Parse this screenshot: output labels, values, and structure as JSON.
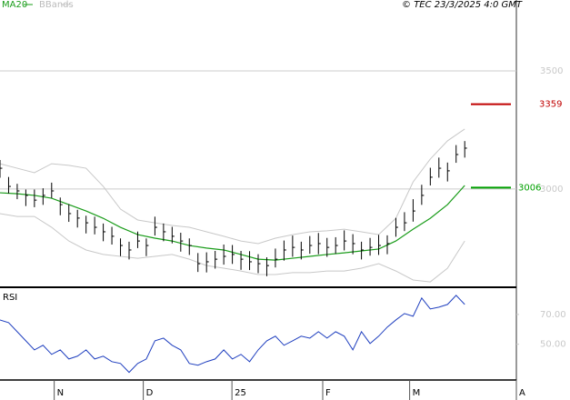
{
  "chart_data": [
    {
      "type": "ohlc",
      "credit": "© TEC 23/3/2025 4:0 GMT",
      "grid": true,
      "ylim": [
        2588,
        3800
      ],
      "yticks": [
        3000,
        3500
      ],
      "xlim": [
        0,
        120
      ],
      "ohlc": {
        "x": [
          0,
          2,
          4,
          6,
          8,
          10,
          12,
          14,
          16,
          18,
          20,
          22,
          24,
          26,
          28,
          30,
          32,
          34,
          36,
          38,
          40,
          42,
          44,
          46,
          48,
          50,
          52,
          54,
          56,
          58,
          60,
          62,
          64,
          66,
          68,
          70,
          72,
          74,
          76,
          78,
          80,
          82,
          84,
          86,
          88,
          90,
          92,
          94,
          96,
          98,
          100,
          102,
          104,
          106,
          108
        ],
        "high": [
          3123,
          3051,
          3022,
          2998,
          2998,
          3003,
          3027,
          2964,
          2936,
          2912,
          2887,
          2883,
          2854,
          2840,
          2791,
          2777,
          2820,
          2791,
          2883,
          2854,
          2840,
          2815,
          2791,
          2729,
          2732,
          2738,
          2765,
          2763,
          2738,
          2737,
          2724,
          2711,
          2748,
          2782,
          2803,
          2777,
          2801,
          2814,
          2793,
          2796,
          2825,
          2809,
          2777,
          2793,
          2806,
          2804,
          2878,
          2902,
          2957,
          3018,
          3090,
          3133,
          3112,
          3186,
          3203
        ],
        "low": [
          3048,
          2981,
          2957,
          2928,
          2923,
          2933,
          2962,
          2889,
          2861,
          2837,
          2812,
          2808,
          2779,
          2765,
          2716,
          2702,
          2750,
          2716,
          2803,
          2779,
          2770,
          2735,
          2721,
          2649,
          2647,
          2663,
          2680,
          2683,
          2658,
          2657,
          2644,
          2631,
          2668,
          2697,
          2713,
          2702,
          2726,
          2724,
          2713,
          2726,
          2740,
          2724,
          2702,
          2718,
          2721,
          2724,
          2798,
          2822,
          2862,
          2933,
          3015,
          3048,
          3032,
          3111,
          3133
        ],
        "close": [
          3088,
          3011,
          2992,
          2973,
          2953,
          2973,
          2992,
          2934,
          2896,
          2877,
          2857,
          2838,
          2819,
          2800,
          2761,
          2742,
          2780,
          2761,
          2838,
          2819,
          2800,
          2780,
          2761,
          2684,
          2692,
          2703,
          2715,
          2723,
          2703,
          2692,
          2684,
          2676,
          2703,
          2742,
          2753,
          2742,
          2761,
          2769,
          2753,
          2761,
          2780,
          2769,
          2742,
          2753,
          2761,
          2769,
          2838,
          2857,
          2907,
          2973,
          3050,
          3088,
          3077,
          3146,
          3173
        ]
      },
      "series": [
        {
          "name": "MA20",
          "color": "#1a9c1a",
          "x": [
            0,
            4,
            8,
            12,
            16,
            20,
            24,
            28,
            32,
            36,
            40,
            44,
            48,
            52,
            56,
            60,
            64,
            68,
            72,
            76,
            80,
            84,
            88,
            92,
            96,
            100,
            104,
            108
          ],
          "values": [
            2984,
            2980,
            2973,
            2961,
            2934,
            2907,
            2876,
            2838,
            2807,
            2792,
            2780,
            2761,
            2750,
            2742,
            2723,
            2703,
            2699,
            2707,
            2715,
            2723,
            2730,
            2738,
            2746,
            2780,
            2830,
            2876,
            2934,
            3015
          ]
        },
        {
          "name": "BBands",
          "color": "#c8c8c8",
          "x": [
            0,
            4,
            8,
            12,
            16,
            20,
            24,
            28,
            32,
            36,
            40,
            44,
            48,
            52,
            56,
            60,
            64,
            68,
            72,
            76,
            80,
            84,
            88,
            92,
            96,
            100,
            104,
            108
          ],
          "upper": [
            3107,
            3088,
            3069,
            3107,
            3100,
            3088,
            3011,
            2915,
            2869,
            2857,
            2846,
            2838,
            2819,
            2800,
            2780,
            2769,
            2792,
            2807,
            2819,
            2823,
            2830,
            2819,
            2807,
            2876,
            3030,
            3127,
            3204,
            3254
          ],
          "lower": [
            2896,
            2884,
            2884,
            2838,
            2780,
            2742,
            2723,
            2715,
            2707,
            2715,
            2723,
            2703,
            2676,
            2665,
            2653,
            2638,
            2638,
            2646,
            2646,
            2653,
            2653,
            2665,
            2684,
            2653,
            2615,
            2607,
            2665,
            2780
          ]
        }
      ],
      "levels": [
        {
          "value": 3359,
          "color": "#c00000"
        },
        {
          "value": 3006,
          "color": "#00a000"
        }
      ]
    },
    {
      "type": "line",
      "title": "RSI",
      "grid": false,
      "ylim": [
        26,
        87
      ],
      "yticks": [
        {
          "value": 50,
          "label": "50.00"
        },
        {
          "value": 70,
          "label": "70.00"
        }
      ],
      "xlim": [
        0,
        120
      ],
      "xticks": [
        {
          "value": 12.6,
          "label": "N"
        },
        {
          "value": 33.3,
          "label": "D"
        },
        {
          "value": 53.9,
          "label": "25"
        },
        {
          "value": 75,
          "label": "F"
        },
        {
          "value": 95.2,
          "label": "M"
        },
        {
          "value": 120,
          "label": "A"
        }
      ],
      "series": [
        {
          "name": "RSI",
          "color": "#1f3fbf",
          "x": [
            0,
            2,
            4,
            6,
            8,
            10,
            12,
            14,
            16,
            18,
            20,
            22,
            24,
            26,
            28,
            30,
            32,
            34,
            36,
            38,
            40,
            42,
            44,
            46,
            48,
            50,
            52,
            54,
            56,
            58,
            60,
            62,
            64,
            66,
            68,
            70,
            72,
            74,
            76,
            78,
            80,
            82,
            84,
            86,
            88,
            90,
            92,
            94,
            96,
            98,
            100,
            102,
            104,
            106,
            108
          ],
          "values": [
            66.3,
            64.5,
            58.4,
            52.3,
            46.2,
            49.3,
            43.2,
            46.2,
            40.1,
            42,
            46.2,
            40.1,
            42,
            38.3,
            37.1,
            31.1,
            37.1,
            40.1,
            52.3,
            54.1,
            49.3,
            46.2,
            37.1,
            35.9,
            38.3,
            40.1,
            46.2,
            40.1,
            43.2,
            38.3,
            46.2,
            52.3,
            55.4,
            49.3,
            52.3,
            55.4,
            54.1,
            58.4,
            54.1,
            58.4,
            55.4,
            46.2,
            58.4,
            50.5,
            55.4,
            61.5,
            66.3,
            70.6,
            68.8,
            81,
            73.7,
            74.9,
            76.7,
            82.8,
            76.7
          ]
        }
      ]
    }
  ]
}
